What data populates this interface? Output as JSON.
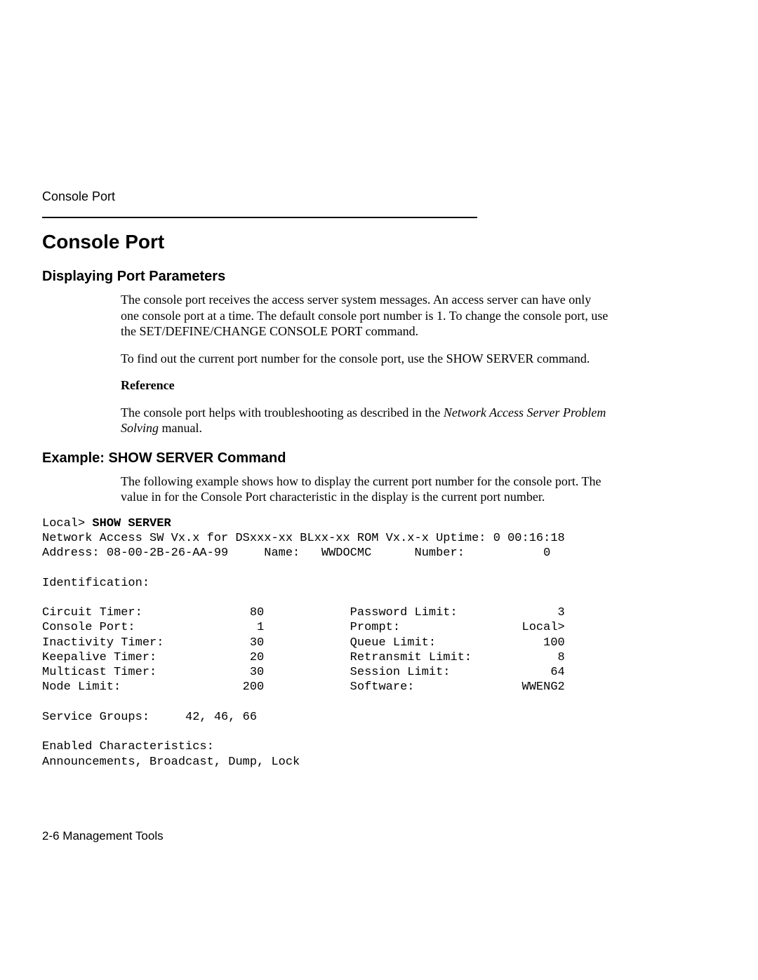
{
  "running_header": "Console Port",
  "title": "Console Port",
  "section1": {
    "heading": "Displaying Port Parameters",
    "p1": "The console port receives the access server system messages. An access server can have only one console port at a time. The default console port number is 1. To change the console port, use the SET/DEFINE/CHANGE CONSOLE PORT command.",
    "p2": "To find out the current port number for the console port, use the SHOW SERVER command.",
    "ref_head": "Reference",
    "ref_pre": "The console port helps with troubleshooting as described in the ",
    "ref_em": "Network Access Server Problem Solving",
    "ref_post": " manual."
  },
  "section2": {
    "heading": "Example:  SHOW SERVER Command",
    "intro": "The following example shows how to display the current port number for the console port. The value in for the Console Port characteristic in the display is the current port number."
  },
  "terminal": {
    "prompt": "Local> ",
    "command": "SHOW SERVER",
    "line1": "Network Access SW Vx.x for DSxxx-xx BLxx-xx ROM Vx.x-x Uptime: 0 00:16:18",
    "line2": "Address: 08-00-2B-26-AA-99     Name:   WWDOCMC      Number:           0",
    "ident": "Identification:",
    "rows_left": [
      {
        "label": "Circuit Timer:",
        "value": "80"
      },
      {
        "label": "Console Port:",
        "value": "1"
      },
      {
        "label": "Inactivity Timer:",
        "value": "30"
      },
      {
        "label": "Keepalive Timer:",
        "value": "20"
      },
      {
        "label": "Multicast Timer:",
        "value": "30"
      },
      {
        "label": "Node Limit:",
        "value": "200"
      }
    ],
    "rows_right": [
      {
        "label": "Password Limit:",
        "value": "3"
      },
      {
        "label": "Prompt:",
        "value": "Local>"
      },
      {
        "label": "Queue Limit:",
        "value": "100"
      },
      {
        "label": "Retransmit Limit:",
        "value": "8"
      },
      {
        "label": "Session Limit:",
        "value": "64"
      },
      {
        "label": "Software:",
        "value": "WWENG2"
      }
    ],
    "svc_label": "Service Groups:",
    "svc_value": "42, 46, 66",
    "enabled_head": "Enabled Characteristics:",
    "enabled_list": "Announcements, Broadcast, Dump, Lock"
  },
  "footer": "2-6  Management Tools",
  "layout": {
    "col_label_w": 22,
    "col_value_w": 9,
    "gap_w": 12,
    "col2_label_w": 22,
    "col2_value_w": 8
  }
}
